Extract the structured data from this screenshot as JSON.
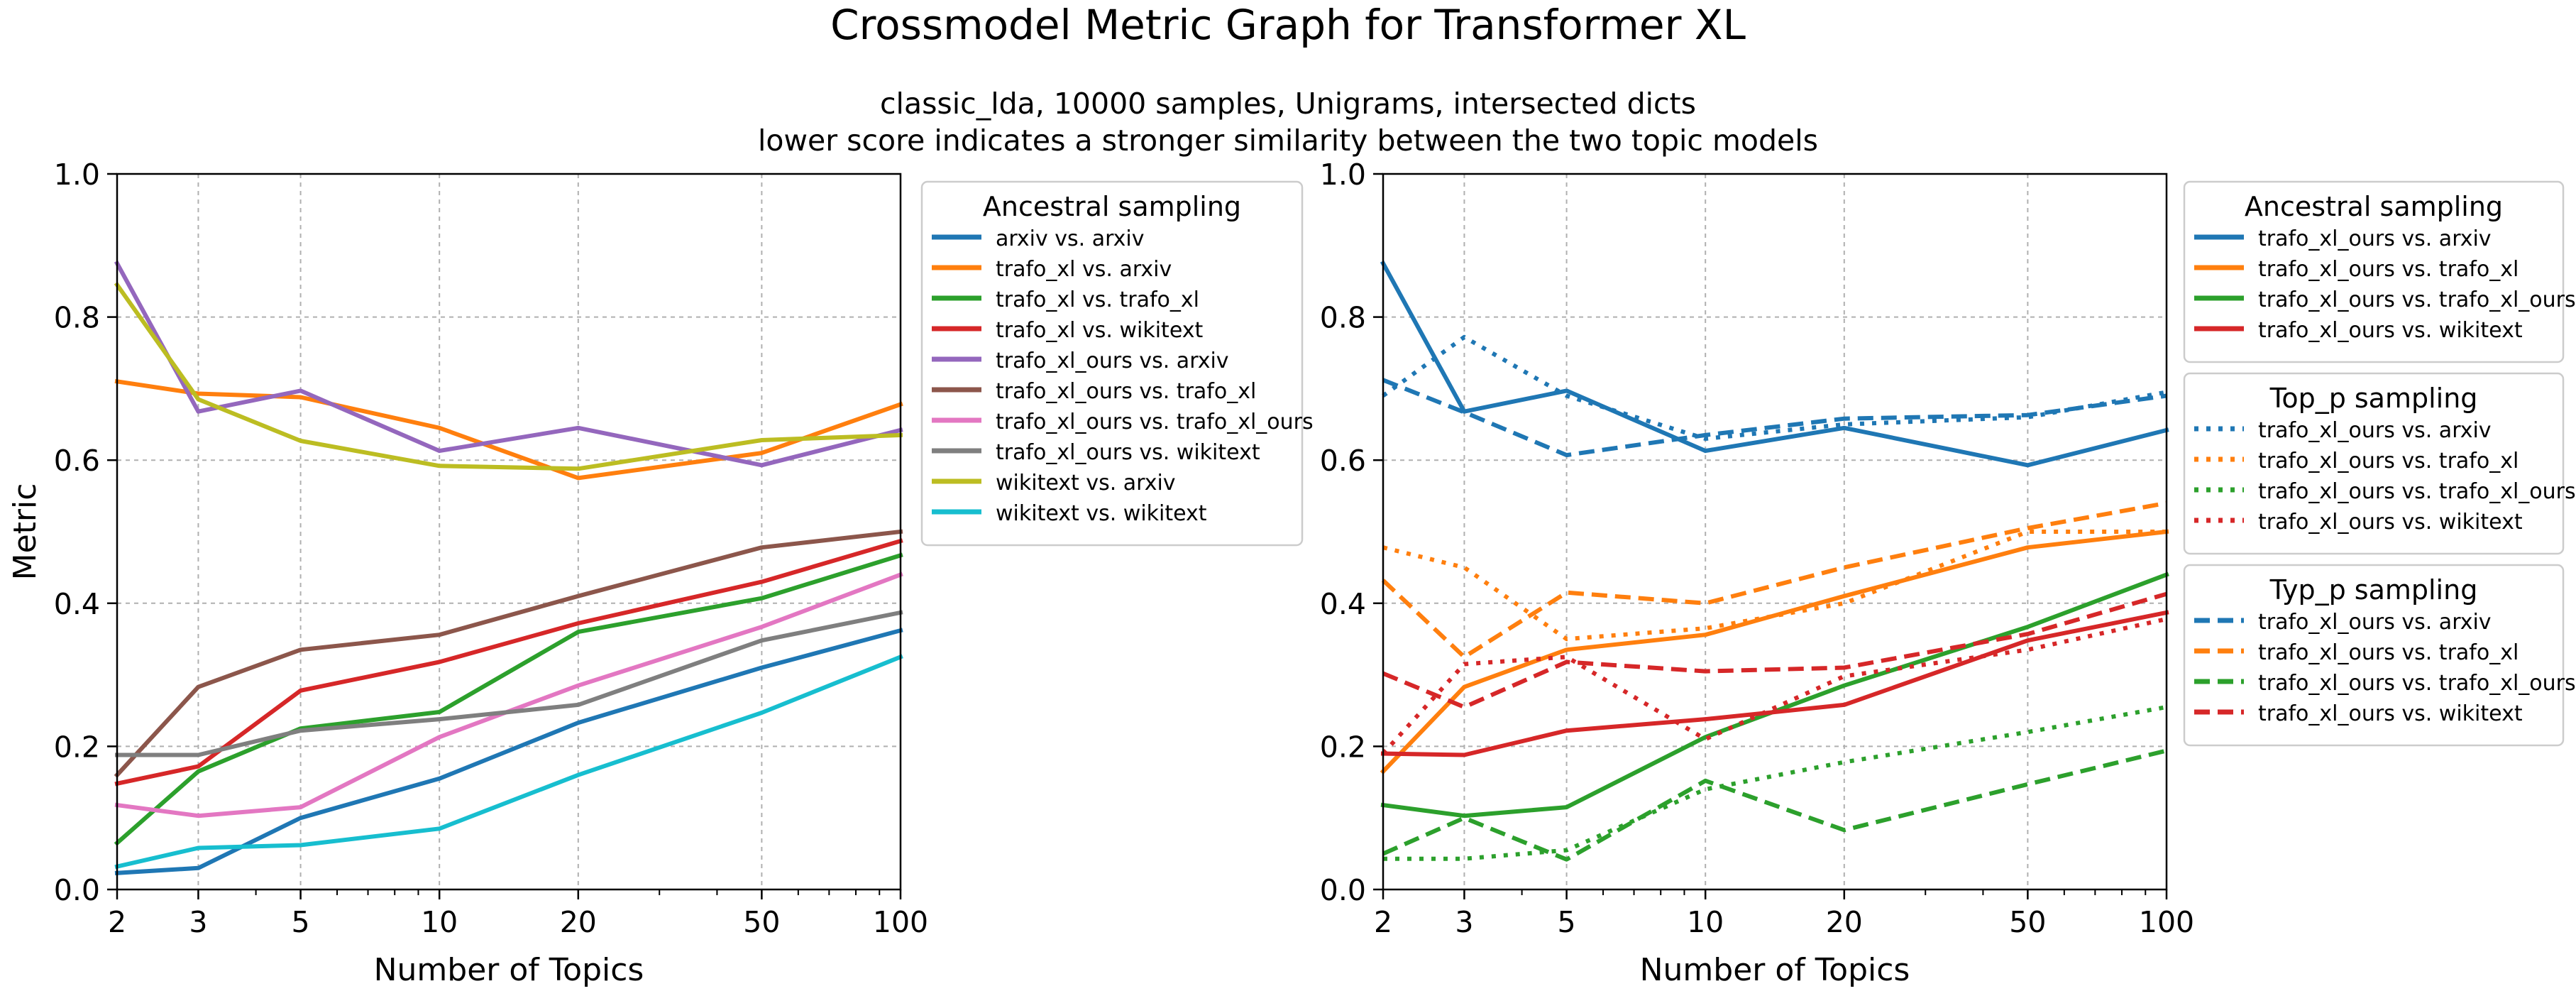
{
  "figure": {
    "title": "Crossmodel Metric Graph for Transformer XL",
    "subtitle_lines": [
      "classic_lda, 10000 samples, Unigrams, intersected dicts",
      "lower score indicates a stronger similarity between the two topic models"
    ]
  },
  "chart_data": [
    {
      "type": "line",
      "xscale": "log",
      "x": [
        2,
        3,
        5,
        10,
        20,
        50,
        100
      ],
      "xticks": [
        "2",
        "3",
        "5",
        "10",
        "20",
        "50",
        "100"
      ],
      "xlabel": "Number of Topics",
      "ylabel": "Metric",
      "ylim": [
        0,
        1
      ],
      "yticks": [
        "0.0",
        "0.2",
        "0.4",
        "0.6",
        "0.8",
        "1.0"
      ],
      "grid": true,
      "legend_position": "outside-right",
      "legend_groups": [
        {
          "title": "Ancestral sampling",
          "series": [
            {
              "name": "arxiv vs. arxiv",
              "color": "#1f77b4",
              "style": "solid",
              "values": [
                0.023,
                0.03,
                0.1,
                0.155,
                0.233,
                0.31,
                0.362
              ]
            },
            {
              "name": "trafo_xl vs. arxiv",
              "color": "#ff7f0e",
              "style": "solid",
              "values": [
                0.71,
                0.693,
                0.688,
                0.645,
                0.575,
                0.61,
                0.678
              ]
            },
            {
              "name": "trafo_xl vs. trafo_xl",
              "color": "#2ca02c",
              "style": "solid",
              "values": [
                0.065,
                0.165,
                0.225,
                0.248,
                0.36,
                0.407,
                0.467
              ]
            },
            {
              "name": "trafo_xl vs. wikitext",
              "color": "#d62728",
              "style": "solid",
              "values": [
                0.148,
                0.172,
                0.278,
                0.318,
                0.372,
                0.43,
                0.487
              ]
            },
            {
              "name": "trafo_xl_ours vs. arxiv",
              "color": "#9467bd",
              "style": "solid",
              "values": [
                0.875,
                0.668,
                0.697,
                0.613,
                0.645,
                0.593,
                0.642
              ]
            },
            {
              "name": "trafo_xl_ours vs. trafo_xl",
              "color": "#8c564b",
              "style": "solid",
              "values": [
                0.16,
                0.283,
                0.335,
                0.356,
                0.41,
                0.478,
                0.5
              ]
            },
            {
              "name": "trafo_xl_ours vs. trafo_xl_ours",
              "color": "#e377c2",
              "style": "solid",
              "values": [
                0.118,
                0.103,
                0.115,
                0.213,
                0.285,
                0.367,
                0.44
              ]
            },
            {
              "name": "trafo_xl_ours vs. wikitext",
              "color": "#7f7f7f",
              "style": "solid",
              "values": [
                0.188,
                0.188,
                0.222,
                0.238,
                0.258,
                0.348,
                0.387
              ]
            },
            {
              "name": "wikitext vs. arxiv",
              "color": "#bcbd22",
              "style": "solid",
              "values": [
                0.845,
                0.685,
                0.627,
                0.592,
                0.588,
                0.628,
                0.635
              ]
            },
            {
              "name": "wikitext vs. wikitext",
              "color": "#17becf",
              "style": "solid",
              "values": [
                0.032,
                0.058,
                0.062,
                0.085,
                0.16,
                0.247,
                0.325
              ]
            }
          ]
        }
      ]
    },
    {
      "type": "line",
      "xscale": "log",
      "x": [
        2,
        3,
        5,
        10,
        20,
        50,
        100
      ],
      "xticks": [
        "2",
        "3",
        "5",
        "10",
        "20",
        "50",
        "100"
      ],
      "xlabel": "Number of Topics",
      "ylabel": "",
      "ylim": [
        0,
        1
      ],
      "yticks": [
        "0.0",
        "0.2",
        "0.4",
        "0.6",
        "0.8",
        "1.0"
      ],
      "grid": true,
      "legend_position": "outside-right",
      "legend_groups": [
        {
          "title": "Ancestral sampling",
          "series": [
            {
              "name": "trafo_xl_ours vs. arxiv",
              "color": "#1f77b4",
              "style": "solid",
              "values": [
                0.875,
                0.668,
                0.697,
                0.613,
                0.645,
                0.593,
                0.642
              ]
            },
            {
              "name": "trafo_xl_ours vs. trafo_xl",
              "color": "#ff7f0e",
              "style": "solid",
              "values": [
                0.165,
                0.283,
                0.335,
                0.356,
                0.41,
                0.478,
                0.5
              ]
            },
            {
              "name": "trafo_xl_ours vs. trafo_xl_ours",
              "color": "#2ca02c",
              "style": "solid",
              "values": [
                0.118,
                0.103,
                0.115,
                0.213,
                0.285,
                0.367,
                0.44
              ]
            },
            {
              "name": "trafo_xl_ours vs. wikitext",
              "color": "#d62728",
              "style": "solid",
              "values": [
                0.19,
                0.188,
                0.222,
                0.238,
                0.258,
                0.348,
                0.387
              ]
            }
          ]
        },
        {
          "title": "Top_p sampling",
          "series": [
            {
              "name": "trafo_xl_ours vs. arxiv",
              "color": "#1f77b4",
              "style": "dotted",
              "values": [
                0.69,
                0.772,
                0.69,
                0.63,
                0.65,
                0.66,
                0.695
              ]
            },
            {
              "name": "trafo_xl_ours vs. trafo_xl",
              "color": "#ff7f0e",
              "style": "dotted",
              "values": [
                0.478,
                0.45,
                0.35,
                0.365,
                0.4,
                0.5,
                0.5
              ]
            },
            {
              "name": "trafo_xl_ours vs. trafo_xl_ours",
              "color": "#2ca02c",
              "style": "dotted",
              "values": [
                0.043,
                0.043,
                0.055,
                0.14,
                0.178,
                0.22,
                0.255
              ]
            },
            {
              "name": "trafo_xl_ours vs. wikitext",
              "color": "#d62728",
              "style": "dotted",
              "values": [
                0.19,
                0.315,
                0.325,
                0.21,
                0.298,
                0.335,
                0.378
              ]
            }
          ]
        },
        {
          "title": "Typ_p sampling",
          "series": [
            {
              "name": "trafo_xl_ours vs. arxiv",
              "color": "#1f77b4",
              "style": "dashed",
              "values": [
                0.712,
                0.667,
                0.607,
                0.635,
                0.658,
                0.663,
                0.69
              ]
            },
            {
              "name": "trafo_xl_ours vs. trafo_xl",
              "color": "#ff7f0e",
              "style": "dashed",
              "values": [
                0.432,
                0.325,
                0.415,
                0.4,
                0.45,
                0.505,
                0.54
              ]
            },
            {
              "name": "trafo_xl_ours vs. trafo_xl_ours",
              "color": "#2ca02c",
              "style": "dashed",
              "values": [
                0.05,
                0.1,
                0.042,
                0.152,
                0.083,
                0.147,
                0.194
              ]
            },
            {
              "name": "trafo_xl_ours vs. wikitext",
              "color": "#d62728",
              "style": "dashed",
              "values": [
                0.302,
                0.255,
                0.318,
                0.305,
                0.31,
                0.357,
                0.413
              ]
            }
          ]
        }
      ]
    }
  ]
}
